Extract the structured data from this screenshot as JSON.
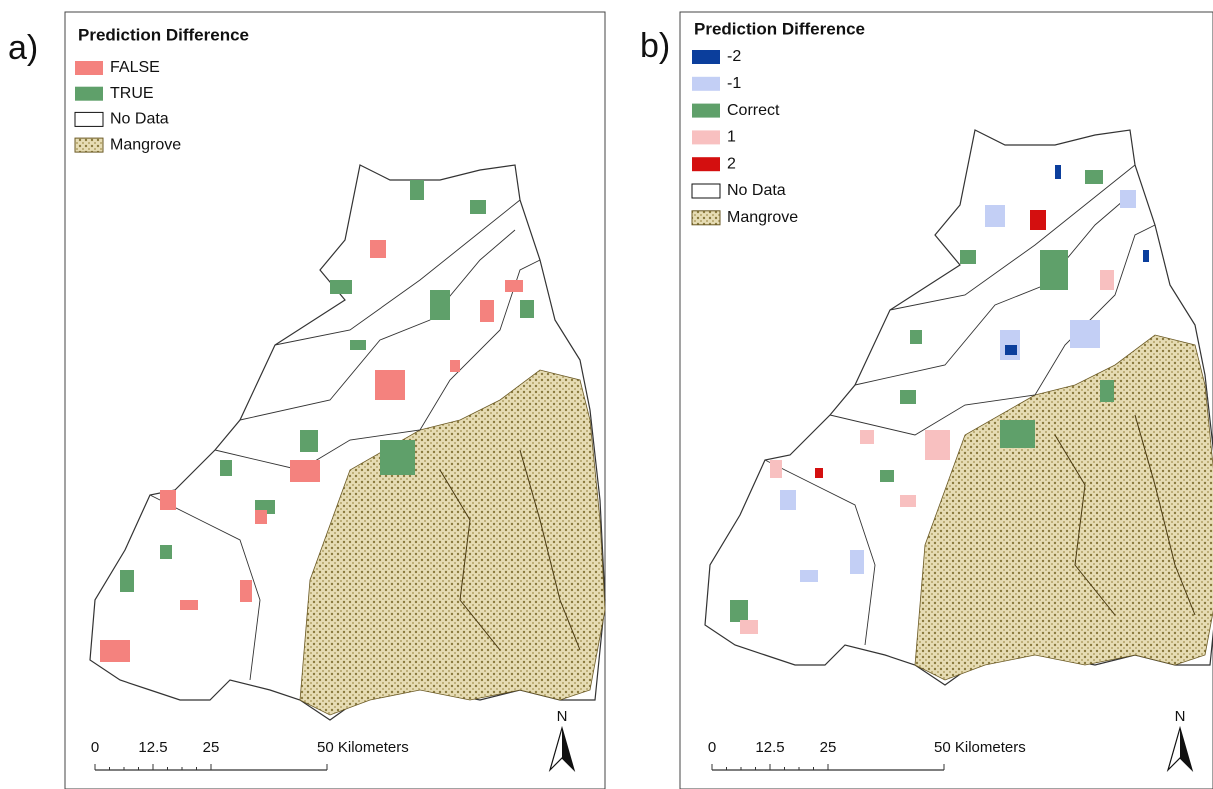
{
  "panels": [
    {
      "label": "a)",
      "legend": {
        "title": "Prediction Difference",
        "items": [
          {
            "label": "FALSE",
            "color": "#f4827e"
          },
          {
            "label": "TRUE",
            "color": "#5fa06a"
          },
          {
            "label": "No Data",
            "color": "#ffffff"
          },
          {
            "label": "Mangrove",
            "color": "#c8b97e"
          }
        ]
      },
      "scale_bar": {
        "labels": [
          "0",
          "12.5",
          "25",
          "50 Kilometers"
        ]
      },
      "north": "N"
    },
    {
      "label": "b)",
      "legend": {
        "title": "Prediction Difference",
        "items": [
          {
            "label": "-2",
            "color": "#0b3e9c"
          },
          {
            "label": "-1",
            "color": "#c3cff5"
          },
          {
            "label": "Correct",
            "color": "#5fa06a"
          },
          {
            "label": "1",
            "color": "#f8c0c0"
          },
          {
            "label": "2",
            "color": "#d40f0f"
          },
          {
            "label": "No Data",
            "color": "#ffffff"
          },
          {
            "label": "Mangrove",
            "color": "#c8b97e"
          }
        ]
      },
      "scale_bar": {
        "labels": [
          "0",
          "12.5",
          "25",
          "50 Kilometers"
        ]
      },
      "north": "N"
    }
  ]
}
